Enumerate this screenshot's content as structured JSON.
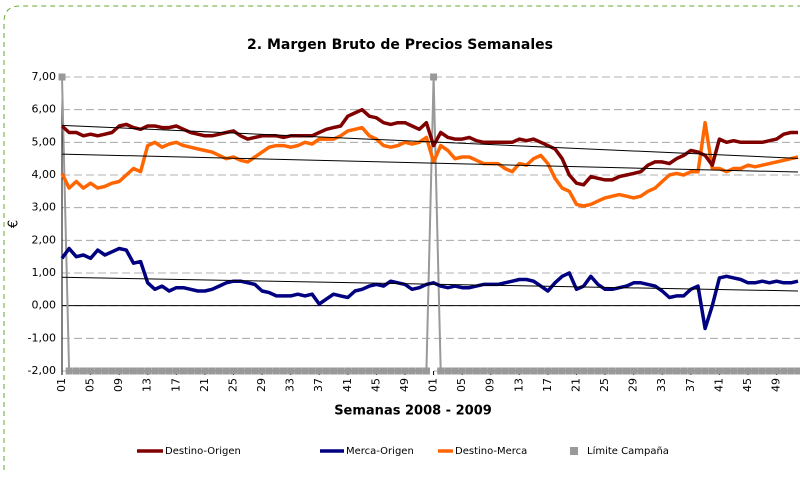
{
  "chart_data": {
    "type": "line",
    "title": "2. Margen Bruto de Precios Semanales",
    "x_label": "Semanas 2008 - 2009",
    "y_label": "€",
    "categories": [
      "01",
      null,
      null,
      null,
      "05",
      null,
      null,
      null,
      "09",
      null,
      null,
      null,
      "13",
      null,
      null,
      null,
      "17",
      null,
      null,
      null,
      "21",
      null,
      null,
      null,
      "25",
      null,
      null,
      null,
      "29",
      null,
      null,
      null,
      "33",
      null,
      null,
      null,
      "37",
      null,
      null,
      null,
      "41",
      null,
      null,
      null,
      "45",
      null,
      null,
      null,
      "49",
      null,
      null,
      null,
      "01",
      null,
      null,
      null,
      "05",
      null,
      null,
      null,
      "09",
      null,
      null,
      null,
      "13",
      null,
      null,
      null,
      "17",
      null,
      null,
      null,
      "21",
      null,
      null,
      null,
      "25",
      null,
      null,
      null,
      "29",
      null,
      null,
      null,
      "33",
      null,
      null,
      null,
      "37",
      null,
      null,
      null,
      "41",
      null,
      null,
      null,
      "45",
      null,
      null,
      null,
      "49",
      null,
      null,
      null
    ],
    "series": [
      {
        "name": "Destino-Origen",
        "color": "#800000",
        "values": [
          5.5,
          5.3,
          5.3,
          5.2,
          5.25,
          5.2,
          5.25,
          5.3,
          5.5,
          5.55,
          5.45,
          5.4,
          5.5,
          5.5,
          5.45,
          5.45,
          5.5,
          5.4,
          5.3,
          5.25,
          5.2,
          5.2,
          5.25,
          5.3,
          5.35,
          5.2,
          5.1,
          5.15,
          5.2,
          5.2,
          5.2,
          5.15,
          5.2,
          5.2,
          5.2,
          5.2,
          5.3,
          5.4,
          5.45,
          5.5,
          5.8,
          5.9,
          6.0,
          5.8,
          5.75,
          5.6,
          5.55,
          5.6,
          5.6,
          5.5,
          5.4,
          5.6,
          4.9,
          5.3,
          5.15,
          5.1,
          5.1,
          5.15,
          5.05,
          5.0,
          5.0,
          5.0,
          5.0,
          5.0,
          5.1,
          5.05,
          5.1,
          5.0,
          4.9,
          4.8,
          4.5,
          4.0,
          3.75,
          3.7,
          3.95,
          3.9,
          3.85,
          3.85,
          3.95,
          4.0,
          4.05,
          4.1,
          4.3,
          4.4,
          4.4,
          4.35,
          4.5,
          4.6,
          4.75,
          4.7,
          4.6,
          4.3,
          5.1,
          5.0,
          5.05,
          5.0,
          5.0,
          5.0,
          5.0,
          5.05,
          5.1,
          5.25,
          5.3,
          5.3
        ]
      },
      {
        "name": "Merca-Origen",
        "color": "#000080",
        "values": [
          1.45,
          1.75,
          1.5,
          1.55,
          1.45,
          1.7,
          1.55,
          1.65,
          1.75,
          1.7,
          1.3,
          1.35,
          0.7,
          0.5,
          0.6,
          0.45,
          0.55,
          0.55,
          0.5,
          0.45,
          0.45,
          0.5,
          0.6,
          0.7,
          0.75,
          0.75,
          0.7,
          0.65,
          0.45,
          0.4,
          0.3,
          0.3,
          0.3,
          0.35,
          0.3,
          0.35,
          0.05,
          0.2,
          0.35,
          0.3,
          0.25,
          0.45,
          0.5,
          0.6,
          0.65,
          0.6,
          0.75,
          0.7,
          0.65,
          0.5,
          0.55,
          0.65,
          0.7,
          0.6,
          0.55,
          0.6,
          0.55,
          0.55,
          0.6,
          0.65,
          0.65,
          0.65,
          0.7,
          0.75,
          0.8,
          0.8,
          0.75,
          0.6,
          0.45,
          0.7,
          0.9,
          1.0,
          0.5,
          0.6,
          0.9,
          0.65,
          0.5,
          0.5,
          0.55,
          0.6,
          0.7,
          0.7,
          0.65,
          0.6,
          0.45,
          0.25,
          0.3,
          0.3,
          0.5,
          0.6,
          -0.7,
          0.0,
          0.85,
          0.9,
          0.85,
          0.8,
          0.7,
          0.7,
          0.75,
          0.7,
          0.75,
          0.7,
          0.7,
          0.75
        ]
      },
      {
        "name": "Destino-Merca",
        "color": "#ff6600",
        "values": [
          4.05,
          3.6,
          3.8,
          3.6,
          3.75,
          3.6,
          3.65,
          3.75,
          3.8,
          4.0,
          4.2,
          4.1,
          4.9,
          5.0,
          4.85,
          4.95,
          5.0,
          4.9,
          4.85,
          4.8,
          4.75,
          4.7,
          4.6,
          4.5,
          4.55,
          4.45,
          4.4,
          4.55,
          4.7,
          4.85,
          4.9,
          4.9,
          4.85,
          4.9,
          5.0,
          4.95,
          5.1,
          5.1,
          5.1,
          5.2,
          5.35,
          5.4,
          5.45,
          5.2,
          5.1,
          4.9,
          4.85,
          4.9,
          5.0,
          4.95,
          5.0,
          5.15,
          4.4,
          4.9,
          4.75,
          4.5,
          4.55,
          4.55,
          4.45,
          4.35,
          4.35,
          4.35,
          4.2,
          4.1,
          4.35,
          4.3,
          4.5,
          4.6,
          4.35,
          3.9,
          3.6,
          3.5,
          3.1,
          3.05,
          3.1,
          3.2,
          3.3,
          3.35,
          3.4,
          3.35,
          3.3,
          3.35,
          3.5,
          3.6,
          3.8,
          4.0,
          4.05,
          4.0,
          4.1,
          4.1,
          5.6,
          4.2,
          4.2,
          4.1,
          4.2,
          4.2,
          4.3,
          4.25,
          4.3,
          4.35,
          4.4,
          4.45,
          4.5,
          4.55
        ]
      },
      {
        "name": "Límite Campaña",
        "color": "#999999",
        "marker": "square",
        "values": [
          7,
          -2,
          -2,
          -2,
          -2,
          -2,
          -2,
          -2,
          -2,
          -2,
          -2,
          -2,
          -2,
          -2,
          -2,
          -2,
          -2,
          -2,
          -2,
          -2,
          -2,
          -2,
          -2,
          -2,
          -2,
          -2,
          -2,
          -2,
          -2,
          -2,
          -2,
          -2,
          -2,
          -2,
          -2,
          -2,
          -2,
          -2,
          -2,
          -2,
          -2,
          -2,
          -2,
          -2,
          -2,
          -2,
          -2,
          -2,
          -2,
          -2,
          -2,
          -2,
          7,
          -2,
          -2,
          -2,
          -2,
          -2,
          -2,
          -2,
          -2,
          -2,
          -2,
          -2,
          -2,
          -2,
          -2,
          -2,
          -2,
          -2,
          -2,
          -2,
          -2,
          -2,
          -2,
          -2,
          -2,
          -2,
          -2,
          -2,
          -2,
          -2,
          -2,
          -2,
          -2,
          -2,
          -2,
          -2,
          -2,
          -2,
          -2,
          -2,
          -2,
          -2,
          -2,
          -2,
          -2,
          -2,
          -2,
          -2,
          -2,
          -2,
          -2,
          -2
        ]
      }
    ],
    "trendlines": [
      {
        "color": "#000000",
        "values": [
          5.52,
          4.51
        ]
      },
      {
        "color": "#000000",
        "values": [
          4.64,
          4.09
        ]
      },
      {
        "color": "#000000",
        "values": [
          0.87,
          0.45
        ]
      }
    ],
    "ylim": [
      -2,
      7
    ],
    "yticks": [
      {
        "value": -2,
        "label": "-2,00"
      },
      {
        "value": -1,
        "label": "-1,00"
      },
      {
        "value": 0,
        "label": "0,00"
      },
      {
        "value": 1,
        "label": "1,00"
      },
      {
        "value": 2,
        "label": "2,00"
      },
      {
        "value": 3,
        "label": "3,00"
      },
      {
        "value": 4,
        "label": "4,00"
      },
      {
        "value": 5,
        "label": "5,00"
      },
      {
        "value": 6,
        "label": "6,00"
      },
      {
        "value": 7,
        "label": "7,00"
      }
    ],
    "grid": true,
    "legend": "bottom"
  }
}
